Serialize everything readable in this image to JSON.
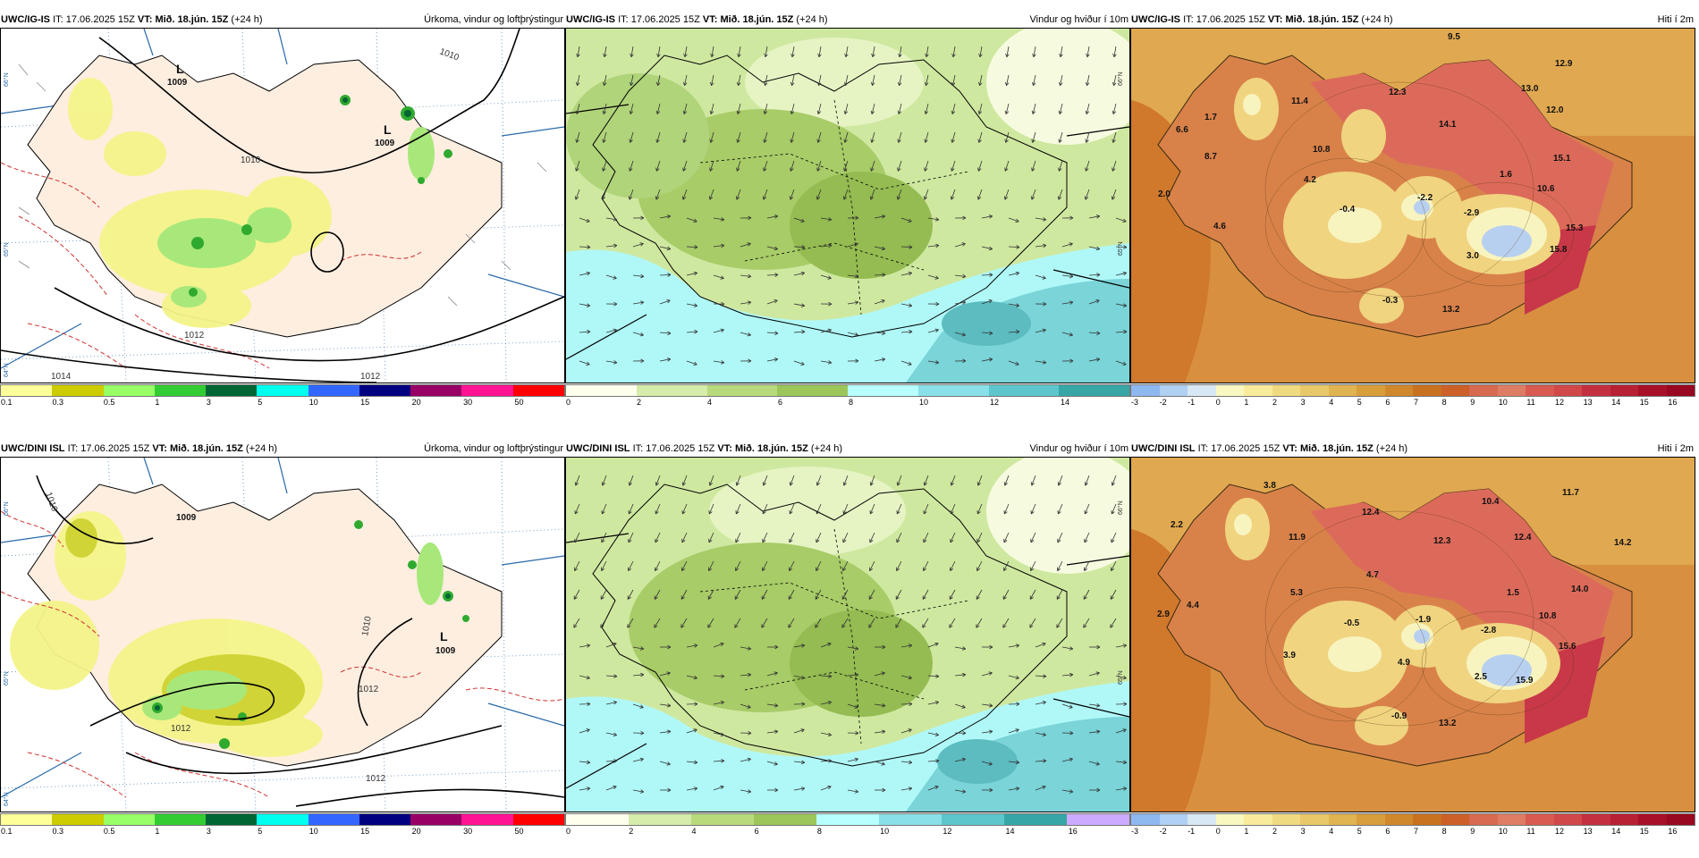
{
  "rows": [
    {
      "precip": {
        "model": "UWC/IG-IS",
        "it_label": "IT:",
        "it": "17.06.2025 15Z",
        "vt_label": "VT:",
        "vt": "Mið. 18.jún. 15Z",
        "lead": "(+24 h)",
        "title": "Úrkoma, vindur og loftþrýstingur",
        "lows": [
          {
            "letter": "L",
            "value": "1009"
          },
          {
            "letter": "L",
            "value": "1009"
          }
        ],
        "isobars": [
          "1010",
          "1010",
          "1012",
          "1012",
          "1014"
        ],
        "lat_labels": [
          "66°N",
          "65°N",
          "64°N"
        ]
      },
      "wind": {
        "model": "UWC/IG-IS",
        "it_label": "IT:",
        "it": "17.06.2025 15Z",
        "vt_label": "VT:",
        "vt": "Mið. 18.jún. 15Z",
        "lead": "(+24 h)",
        "title": "Vindur og hviður í 10m",
        "lat_labels": [
          "66°N",
          "65°N"
        ]
      },
      "temp": {
        "model": "UWC/IG-IS",
        "it_label": "IT:",
        "it": "17.06.2025 15Z",
        "vt_label": "VT:",
        "vt": "Mið. 18.jún. 15Z",
        "lead": "(+24 h)",
        "title": "Hiti í 2m",
        "values": [
          "9.5",
          "12.9",
          "12.3",
          "13.0",
          "11.4",
          "1.7",
          "14.1",
          "12.0",
          "6.6",
          "10.8",
          "15.1",
          "8.7",
          "4.2",
          "1.6",
          "2.0",
          "10.6",
          "-0.4",
          "-2.2",
          "4.6",
          "-2.9",
          "15.3",
          "3.0",
          "15.8",
          "-0.3",
          "13.2"
        ]
      }
    },
    {
      "precip": {
        "model": "UWC/DINI ISL",
        "it_label": "IT:",
        "it": "17.06.2025 15Z",
        "vt_label": "VT:",
        "vt": "Mið. 18.jún. 15Z",
        "lead": "(+24 h)",
        "title": "Úrkoma, vindur og loftþrýstingur",
        "lows": [
          {
            "letter": "L",
            "value": "1009"
          },
          {
            "letter": "L",
            "value": "1009"
          }
        ],
        "isobars": [
          "1010",
          "1010",
          "1012",
          "1012",
          "1012"
        ],
        "lat_labels": [
          "66°N",
          "65°N",
          "64°N"
        ]
      },
      "wind": {
        "model": "UWC/DINI ISL",
        "it_label": "IT:",
        "it": "17.06.2025 15Z",
        "vt_label": "VT:",
        "vt": "Mið. 18.jún. 15Z",
        "lead": "(+24 h)",
        "title": "Vindur og hviður í 10m",
        "lat_labels": [
          "66°N",
          "65°N"
        ]
      },
      "temp": {
        "model": "UWC/DINI ISL",
        "it_label": "IT:",
        "it": "17.06.2025 15Z",
        "vt_label": "VT:",
        "vt": "Mið. 18.jún. 15Z",
        "lead": "(+24 h)",
        "title": "Hiti í 2m",
        "values": [
          "3.8",
          "11.7",
          "10.4",
          "2.2",
          "12.4",
          "11.9",
          "12.3",
          "12.4",
          "14.2",
          "4.7",
          "5.3",
          "1.5",
          "14.0",
          "2.9",
          "4.4",
          "-0.5",
          "-1.9",
          "-2.8",
          "10.8",
          "15.6",
          "3.9",
          "4.9",
          "2.5",
          "15.9",
          "-0.9",
          "13.2"
        ]
      }
    }
  ],
  "legends": {
    "precip": {
      "ticks": [
        "0.1",
        "0.3",
        "0.5",
        "1",
        "3",
        "5",
        "10",
        "15",
        "20",
        "30",
        "50"
      ],
      "colors": [
        "#ffff99",
        "#cccc00",
        "#99ff66",
        "#33cc33",
        "#006633",
        "#00ffee",
        "#3366ff",
        "#000080",
        "#990066",
        "#ff1493",
        "#ff0000"
      ]
    },
    "wind_top": {
      "ticks": [
        "0",
        "2",
        "4",
        "6",
        "8",
        "10",
        "12",
        "14"
      ],
      "colors": [
        "#ffffee",
        "#d6ecaa",
        "#b8da7c",
        "#9cc65a",
        "#b8ffff",
        "#8ae0e8",
        "#5cc6cc",
        "#36a6a6"
      ]
    },
    "wind_bottom": {
      "ticks": [
        "0",
        "2",
        "4",
        "6",
        "8",
        "10",
        "12",
        "14",
        "16"
      ],
      "colors": [
        "#ffffee",
        "#d6ecaa",
        "#b8da7c",
        "#9cc65a",
        "#b8ffff",
        "#8ae0e8",
        "#5cc6cc",
        "#36a6a6",
        "#ccaaff"
      ]
    },
    "temp": {
      "ticks": [
        "-3",
        "-2",
        "-1",
        "0",
        "1",
        "2",
        "3",
        "4",
        "5",
        "6",
        "7",
        "8",
        "9",
        "10",
        "11",
        "12",
        "13",
        "14",
        "15",
        "16"
      ],
      "colors": [
        "#8eb8f0",
        "#b0d0f4",
        "#d8e8f4",
        "#f8f8c0",
        "#f8ec9c",
        "#f0da80",
        "#e8c868",
        "#e0b450",
        "#d89e3c",
        "#d0882c",
        "#c87220",
        "#cc6028",
        "#d86a50",
        "#de7c64",
        "#d85a50",
        "#d04848",
        "#c43040",
        "#b82034",
        "#a81028",
        "#980820"
      ]
    }
  }
}
